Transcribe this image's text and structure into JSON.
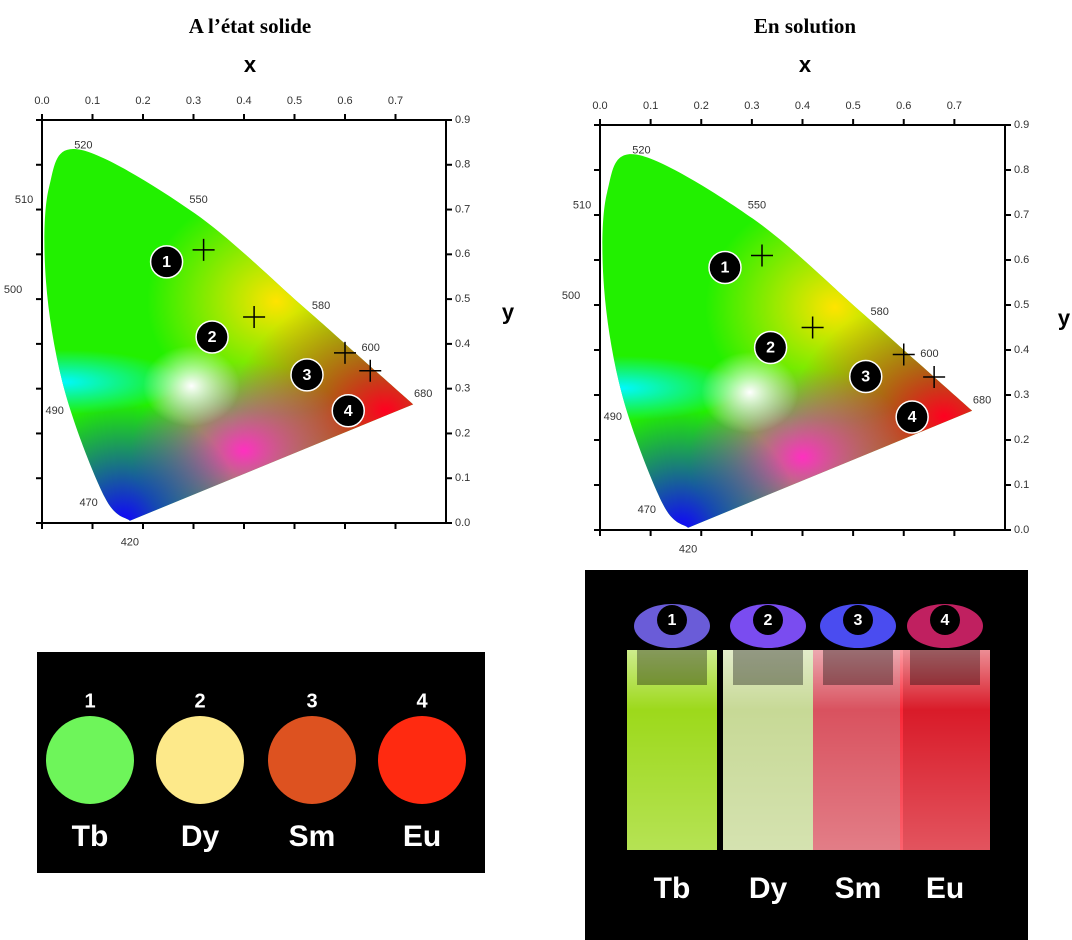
{
  "chart_data": [
    {
      "type": "scatter",
      "title": "A l’état solide",
      "xlabel": "x",
      "ylabel": "y",
      "xlim": [
        0,
        0.8
      ],
      "ylim": [
        0,
        0.9
      ],
      "xticks": [
        {
          "value": 0,
          "label": "0.0"
        },
        0.1,
        0.2,
        0.3,
        0.4,
        0.5,
        0.6,
        0.7
      ],
      "yticks": [
        {
          "value": 0,
          "label": "0.0"
        },
        0.1,
        0.2,
        0.3,
        0.4,
        0.5,
        0.6,
        0.7,
        0.8,
        0.9
      ],
      "locus": {
        "labels": [
          "420",
          "470",
          "490",
          "500",
          "510",
          "520",
          "550",
          "580",
          "600",
          "680"
        ],
        "x": [
          0.174,
          0.124,
          0.045,
          0.008,
          0.014,
          0.074,
          0.302,
          0.513,
          0.627,
          0.735
        ],
        "y": [
          0.005,
          0.058,
          0.295,
          0.538,
          0.75,
          0.834,
          0.692,
          0.487,
          0.373,
          0.265
        ]
      },
      "points": {
        "labels": [
          "1",
          "2",
          "3",
          "4"
        ],
        "x": [
          0.32,
          0.42,
          0.6,
          0.65
        ],
        "y": [
          0.61,
          0.46,
          0.38,
          0.34
        ]
      }
    },
    {
      "type": "scatter",
      "title": "En solution",
      "xlabel": "x",
      "ylabel": "y",
      "xlim": [
        0,
        0.8
      ],
      "ylim": [
        0,
        0.9
      ],
      "xticks": [
        {
          "value": 0,
          "label": "0.0"
        },
        0.1,
        0.2,
        0.3,
        0.4,
        0.5,
        0.6,
        0.7
      ],
      "yticks": [
        {
          "value": 0,
          "label": "0.0"
        },
        0.1,
        0.2,
        0.3,
        0.4,
        0.5,
        0.6,
        0.7,
        0.8,
        0.9
      ],
      "locus": {
        "labels": [
          "420",
          "470",
          "490",
          "500",
          "510",
          "520",
          "550",
          "580",
          "600",
          "680"
        ],
        "x": [
          0.174,
          0.124,
          0.045,
          0.008,
          0.014,
          0.074,
          0.302,
          0.513,
          0.627,
          0.735
        ],
        "y": [
          0.005,
          0.058,
          0.295,
          0.538,
          0.75,
          0.834,
          0.692,
          0.487,
          0.373,
          0.265
        ]
      },
      "points": {
        "labels": [
          "1",
          "2",
          "3",
          "4"
        ],
        "x": [
          0.32,
          0.42,
          0.6,
          0.66
        ],
        "y": [
          0.61,
          0.45,
          0.39,
          0.34
        ]
      }
    }
  ],
  "panels": [
    {
      "numbers": [
        "1",
        "2",
        "3",
        "4"
      ],
      "labels": [
        "Tb",
        "Dy",
        "Sm",
        "Eu"
      ]
    },
    {
      "numbers": [
        "1",
        "2",
        "3",
        "4"
      ],
      "labels": [
        "Tb",
        "Dy",
        "Sm",
        "Eu"
      ]
    }
  ]
}
